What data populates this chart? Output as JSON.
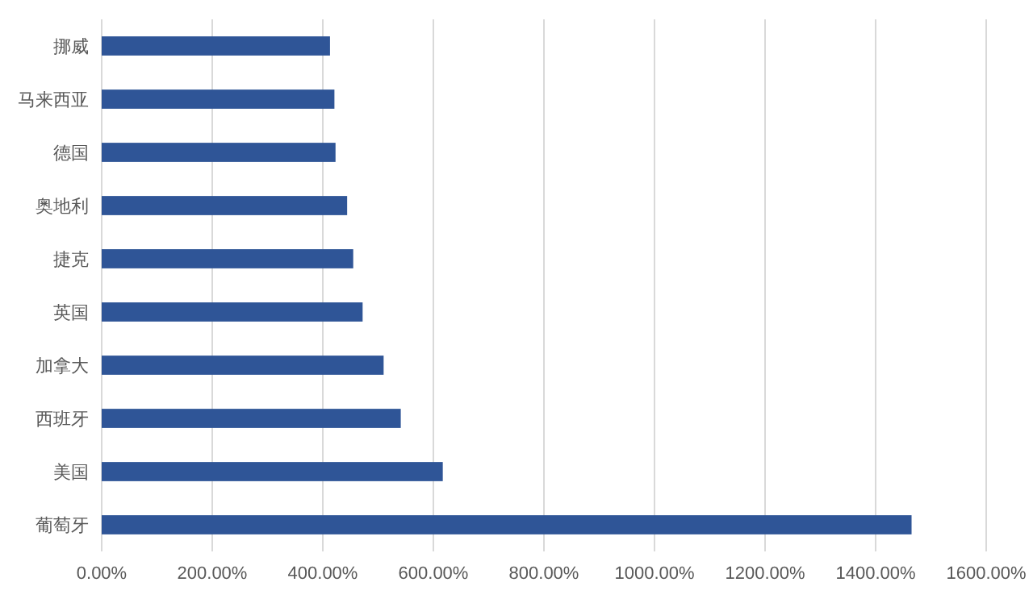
{
  "chart_data": {
    "type": "bar",
    "orientation": "horizontal",
    "categories": [
      "挪威",
      "马来西亚",
      "德国",
      "奥地利",
      "捷克",
      "英国",
      "加拿大",
      "西班牙",
      "美国",
      "葡萄牙"
    ],
    "values": [
      413,
      421,
      423,
      444,
      455,
      472,
      510,
      541,
      617,
      1465
    ],
    "color": "#2f5597",
    "xlim": [
      0,
      1600
    ],
    "xticks": [
      {
        "value": 0,
        "label": "0.00%"
      },
      {
        "value": 200,
        "label": "200.00%"
      },
      {
        "value": 400,
        "label": "400.00%"
      },
      {
        "value": 600,
        "label": "600.00%"
      },
      {
        "value": 800,
        "label": "800.00%"
      },
      {
        "value": 1000,
        "label": "1000.00%"
      },
      {
        "value": 1200,
        "label": "1200.00%"
      },
      {
        "value": 1400,
        "label": "1400.00%"
      },
      {
        "value": 1600,
        "label": "1600.00%"
      }
    ],
    "grid": "x"
  }
}
